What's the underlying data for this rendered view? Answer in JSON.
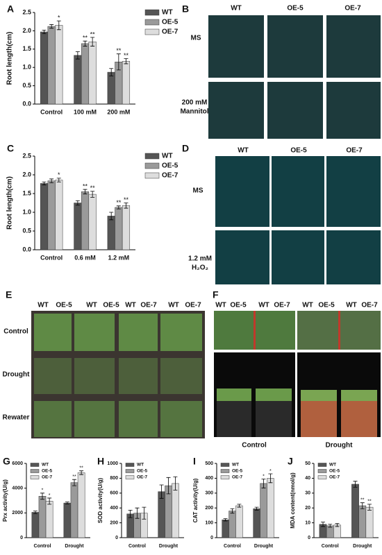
{
  "chart_data": [
    {
      "type": "bar",
      "panel": "A",
      "ylabel": "Root length(cm)",
      "legend": "right",
      "categories": [
        "Control",
        "100 mM",
        "200 mM"
      ],
      "series": [
        {
          "name": "WT",
          "color": "#555555",
          "values": [
            1.97,
            1.33,
            0.87
          ],
          "errors": [
            0.05,
            0.1,
            0.1
          ],
          "sig": [
            null,
            null,
            null
          ]
        },
        {
          "name": "OE-5",
          "color": "#9a9a9a",
          "values": [
            2.12,
            1.65,
            1.15
          ],
          "errors": [
            0.05,
            0.07,
            0.22
          ],
          "sig": [
            null,
            "**",
            "**"
          ]
        },
        {
          "name": "OE-7",
          "color": "#dddddd",
          "values": [
            2.15,
            1.7,
            1.17
          ],
          "errors": [
            0.12,
            0.12,
            0.07
          ],
          "sig": [
            "*",
            "**",
            "**"
          ]
        }
      ],
      "ylim": [
        0,
        2.5
      ],
      "yticks": [
        {
          "value": 0,
          "label": "0.0"
        },
        0.5,
        {
          "value": 1,
          "label": "1.0"
        },
        1.5,
        {
          "value": 2,
          "label": "2.0"
        },
        2.5
      ]
    },
    {
      "type": "bar",
      "panel": "C",
      "ylabel": "Root length(cm)",
      "legend": "right",
      "categories": [
        "Control",
        "0.6 mM",
        "1.2 mM"
      ],
      "series": [
        {
          "name": "WT",
          "color": "#555555",
          "values": [
            1.77,
            1.25,
            0.9
          ],
          "errors": [
            0.04,
            0.06,
            0.1
          ],
          "sig": [
            null,
            null,
            null
          ]
        },
        {
          "name": "OE-5",
          "color": "#9a9a9a",
          "values": [
            1.84,
            1.55,
            1.13
          ],
          "errors": [
            0.05,
            0.06,
            0.04
          ],
          "sig": [
            null,
            "**",
            "**"
          ]
        },
        {
          "name": "OE-7",
          "color": "#dddddd",
          "values": [
            1.86,
            1.48,
            1.18
          ],
          "errors": [
            0.05,
            0.08,
            0.07
          ],
          "sig": [
            "*",
            "**",
            "**"
          ]
        }
      ],
      "ylim": [
        0,
        2.5
      ],
      "yticks": [
        {
          "value": 0,
          "label": "0.0"
        },
        0.5,
        {
          "value": 1,
          "label": "1.0"
        },
        1.5,
        {
          "value": 2,
          "label": "2.0"
        },
        2.5
      ]
    },
    {
      "type": "bar",
      "panel": "G",
      "ylabel": "Prx activity(U/g)",
      "legend": "upper left",
      "categories": [
        "Control",
        "Drought"
      ],
      "series": [
        {
          "name": "WT",
          "color": "#555555",
          "values": [
            2050,
            2800
          ],
          "errors": [
            100,
            80
          ],
          "sig": [
            null,
            null
          ]
        },
        {
          "name": "OE-5",
          "color": "#9a9a9a",
          "values": [
            3350,
            4450
          ],
          "errors": [
            250,
            250
          ],
          "sig": [
            "*",
            "**"
          ]
        },
        {
          "name": "OE-7",
          "color": "#dddddd",
          "values": [
            2950,
            5250
          ],
          "errors": [
            250,
            150
          ],
          "sig": [
            "*",
            "**"
          ]
        }
      ],
      "ylim": [
        0,
        6000
      ],
      "yticks": [
        0,
        2000,
        4000,
        6000
      ]
    },
    {
      "type": "bar",
      "panel": "H",
      "ylabel": "SOD activity(U/g)",
      "legend": "upper left",
      "categories": [
        "Control",
        "Drought"
      ],
      "series": [
        {
          "name": "WT",
          "color": "#555555",
          "values": [
            320,
            620
          ],
          "errors": [
            50,
            90
          ],
          "sig": [
            null,
            null
          ]
        },
        {
          "name": "OE-5",
          "color": "#9a9a9a",
          "values": [
            330,
            700
          ],
          "errors": [
            70,
            110
          ],
          "sig": [
            null,
            null
          ]
        },
        {
          "name": "OE-7",
          "color": "#dddddd",
          "values": [
            330,
            730
          ],
          "errors": [
            80,
            90
          ],
          "sig": [
            null,
            null
          ]
        }
      ],
      "ylim": [
        0,
        1000
      ],
      "yticks": [
        0,
        200,
        400,
        600,
        800,
        1000
      ]
    },
    {
      "type": "bar",
      "panel": "I",
      "ylabel": "CAT activity(U/g)",
      "legend": "upper left",
      "categories": [
        "Control",
        "Drought"
      ],
      "series": [
        {
          "name": "WT",
          "color": "#555555",
          "values": [
            120,
            195
          ],
          "errors": [
            8,
            10
          ],
          "sig": [
            null,
            null
          ]
        },
        {
          "name": "OE-5",
          "color": "#9a9a9a",
          "values": [
            180,
            365
          ],
          "errors": [
            15,
            30
          ],
          "sig": [
            null,
            "*"
          ]
        },
        {
          "name": "OE-7",
          "color": "#dddddd",
          "values": [
            215,
            400
          ],
          "errors": [
            10,
            30
          ],
          "sig": [
            null,
            "*"
          ]
        }
      ],
      "ylim": [
        0,
        500
      ],
      "yticks": [
        0,
        100,
        200,
        300,
        400,
        500
      ]
    },
    {
      "type": "bar",
      "panel": "J",
      "ylabel": "MDA content(nmol/g)",
      "legend": "upper left",
      "categories": [
        "Control",
        "Drought"
      ],
      "series": [
        {
          "name": "WT",
          "color": "#555555",
          "values": [
            9,
            36
          ],
          "errors": [
            1.5,
            2
          ],
          "sig": [
            null,
            null
          ]
        },
        {
          "name": "OE-5",
          "color": "#9a9a9a",
          "values": [
            8,
            21.5
          ],
          "errors": [
            1,
            2
          ],
          "sig": [
            null,
            "**"
          ]
        },
        {
          "name": "OE-7",
          "color": "#dddddd",
          "values": [
            8.5,
            20.5
          ],
          "errors": [
            1,
            2
          ],
          "sig": [
            null,
            "**"
          ]
        }
      ],
      "ylim": [
        0,
        50
      ],
      "yticks": [
        0,
        10,
        20,
        30,
        40,
        50
      ]
    }
  ],
  "panels": {
    "B": {
      "label": "B",
      "columns": [
        "WT",
        "OE-5",
        "OE-7"
      ],
      "rows": [
        "MS",
        "200 mM",
        "Mannitol"
      ]
    },
    "D": {
      "label": "D",
      "columns": [
        "WT",
        "OE-5",
        "OE-7"
      ],
      "rows": [
        "MS",
        "1.2 mM",
        "H₂O₂"
      ]
    },
    "E": {
      "label": "E",
      "columns": [
        "WT",
        "OE-5",
        "WT",
        "OE-5",
        "WT",
        "OE-7",
        "WT",
        "OE-7"
      ],
      "rows": [
        "Control",
        "Drought",
        "Rewater"
      ]
    },
    "F": {
      "label": "F",
      "columns": [
        "WT",
        "OE-5",
        "WT",
        "OE-7",
        "WT",
        "OE-5",
        "WT",
        "OE-7"
      ],
      "rows": [
        "Control",
        "Drought"
      ]
    }
  }
}
